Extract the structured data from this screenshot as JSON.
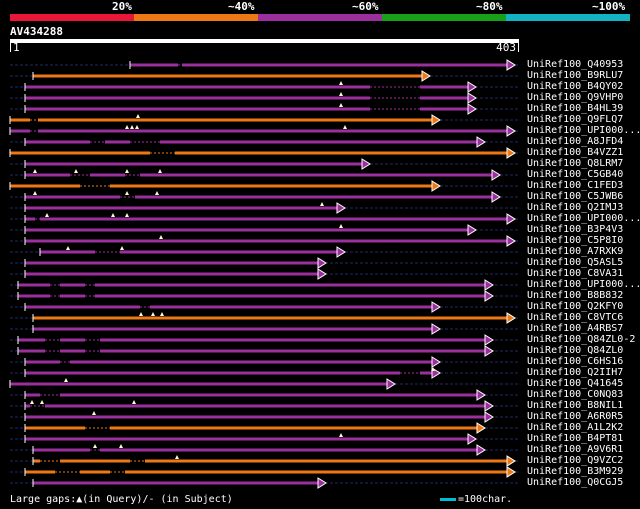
{
  "header": {
    "scale_labels": [
      "20%",
      "~40%",
      "~60%",
      "~80%",
      "~100%"
    ],
    "scale_colors": [
      "#e8173a",
      "#ee7716",
      "#9b2f9e",
      "#19a019",
      "#12b4c4"
    ],
    "query_id": "AV434288",
    "query_start": "1",
    "query_end": "403"
  },
  "hits": [
    {
      "name": "UniRef100_Q40953",
      "color": "purple"
    },
    {
      "name": "UniRef100_B9RLU7",
      "color": "orange"
    },
    {
      "name": "UniRef100_B4QY02",
      "color": "purple"
    },
    {
      "name": "UniRef100_Q9VHP0",
      "color": "purple"
    },
    {
      "name": "UniRef100_B4HL39",
      "color": "purple"
    },
    {
      "name": "UniRef100_Q9FLQ7",
      "color": "orange"
    },
    {
      "name": "UniRef100_UPI000...",
      "color": "purple"
    },
    {
      "name": "UniRef100_A8JFD4",
      "color": "purple"
    },
    {
      "name": "UniRef100_B4VZZ1",
      "color": "orange"
    },
    {
      "name": "UniRef100_Q8LRM7",
      "color": "purple"
    },
    {
      "name": "UniRef100_C5GB40",
      "color": "purple"
    },
    {
      "name": "UniRef100_C1FED3",
      "color": "orange"
    },
    {
      "name": "UniRef100_C5JWB6",
      "color": "purple"
    },
    {
      "name": "UniRef100_Q2IMJ3",
      "color": "purple"
    },
    {
      "name": "UniRef100_UPI000...",
      "color": "purple"
    },
    {
      "name": "UniRef100_B3P4V3",
      "color": "purple"
    },
    {
      "name": "UniRef100_C5P8I0",
      "color": "purple"
    },
    {
      "name": "UniRef100_A7RXK9",
      "color": "purple"
    },
    {
      "name": "UniRef100_Q5ASL5",
      "color": "purple"
    },
    {
      "name": "UniRef100_C8VA31",
      "color": "purple"
    },
    {
      "name": "UniRef100_UPI000...",
      "color": "purple"
    },
    {
      "name": "UniRef100_B8B832",
      "color": "purple"
    },
    {
      "name": "UniRef100_Q2KFY0",
      "color": "purple"
    },
    {
      "name": "UniRef100_C8VTC6",
      "color": "orange"
    },
    {
      "name": "UniRef100_A4RBS7",
      "color": "purple"
    },
    {
      "name": "UniRef100_Q84ZL0-2",
      "color": "purple"
    },
    {
      "name": "UniRef100_Q84ZL0",
      "color": "purple"
    },
    {
      "name": "UniRef100_C6HS16",
      "color": "purple"
    },
    {
      "name": "UniRef100_Q2IIH7",
      "color": "purple"
    },
    {
      "name": "UniRef100_Q41645",
      "color": "purple"
    },
    {
      "name": "UniRef100_C0NQ83",
      "color": "purple"
    },
    {
      "name": "UniRef100_B8NIL1",
      "color": "purple"
    },
    {
      "name": "UniRef100_A6R0R5",
      "color": "purple"
    },
    {
      "name": "UniRef100_A1L2K2",
      "color": "orange"
    },
    {
      "name": "UniRef100_B4PT81",
      "color": "purple"
    },
    {
      "name": "UniRef100_A9V6R1",
      "color": "purple"
    },
    {
      "name": "UniRef100_Q9VZC2",
      "color": "orange"
    },
    {
      "name": "UniRef100_B3M929",
      "color": "orange"
    },
    {
      "name": "UniRef100_Q0CGJ5",
      "color": "purple"
    }
  ],
  "colors": {
    "purple": "#9b2f9e",
    "orange": "#ee7716",
    "dashed": "#1e2a66",
    "tick": "#ffffff"
  },
  "footer": {
    "legend": "Large gaps:▲(in Query)/- (in Subject)",
    "scale": "=100char."
  }
}
